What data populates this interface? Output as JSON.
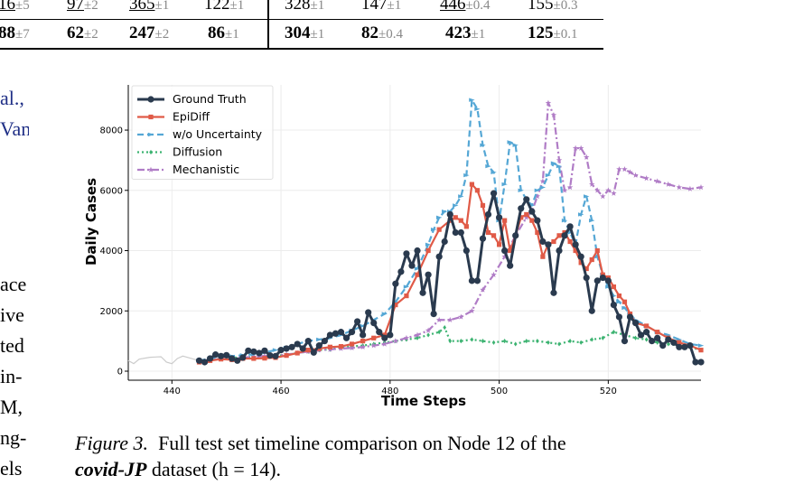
{
  "table": {
    "row1": [
      {
        "v": "16",
        "pm": "±5",
        "underline": true
      },
      {
        "v": "97",
        "pm": "±2",
        "underline": true
      },
      {
        "v": "365",
        "pm": "±1",
        "underline": true
      },
      {
        "v": "122",
        "pm": "±1"
      },
      {
        "v": "328",
        "pm": "±1"
      },
      {
        "v": "147",
        "pm": "±1"
      },
      {
        "v": "446",
        "pm": "±0.4",
        "underline": true
      },
      {
        "v": "155",
        "pm": "±0.3"
      }
    ],
    "row2": [
      {
        "v": "88",
        "pm": "±7"
      },
      {
        "v": "62",
        "pm": "±2"
      },
      {
        "v": "247",
        "pm": "±2"
      },
      {
        "v": "86",
        "pm": "±1"
      },
      {
        "v": "304",
        "pm": "±1"
      },
      {
        "v": "82",
        "pm": "±0.4"
      },
      {
        "v": "423",
        "pm": "±1"
      },
      {
        "v": "125",
        "pm": "±0.1"
      }
    ]
  },
  "side_text": {
    "links": [
      "al.,",
      "Van"
    ],
    "lines": [
      "ace",
      "ive",
      "ted",
      "in-",
      "M,",
      "ng-",
      "els"
    ]
  },
  "caption": {
    "label": "Figure 3.",
    "text": "Full test set timeline comparison on Node 12 of the",
    "dataset": "covid-JP",
    "text2": "dataset (h = 14)."
  },
  "chart_data": {
    "type": "line",
    "xlabel": "Time Steps",
    "ylabel": "Daily Cases",
    "xlim": [
      432,
      537
    ],
    "ylim": [
      -300,
      9500
    ],
    "xticks": [
      440,
      460,
      480,
      500,
      520
    ],
    "yticks": [
      0,
      2000,
      4000,
      6000,
      8000
    ],
    "grid": true,
    "legend_position": "top-left",
    "history": {
      "color": "#cccccc",
      "x": [
        432,
        433,
        434,
        435,
        436,
        437,
        438,
        439,
        440,
        441,
        442,
        443,
        444,
        445
      ],
      "y": [
        350,
        250,
        400,
        430,
        460,
        470,
        480,
        300,
        250,
        420,
        500,
        450,
        400,
        350
      ]
    },
    "series": [
      {
        "name": "Ground Truth",
        "color": "#2a3a4e",
        "style": "solid",
        "marker": "circle",
        "x": [
          445,
          446,
          447,
          448,
          449,
          450,
          451,
          452,
          453,
          454,
          455,
          456,
          457,
          458,
          459,
          460,
          461,
          462,
          463,
          464,
          465,
          466,
          467,
          468,
          469,
          470,
          471,
          472,
          473,
          474,
          475,
          476,
          477,
          478,
          479,
          480,
          481,
          482,
          483,
          484,
          485,
          486,
          487,
          488,
          489,
          490,
          491,
          492,
          493,
          494,
          495,
          496,
          497,
          498,
          499,
          500,
          501,
          502,
          503,
          504,
          505,
          506,
          507,
          508,
          509,
          510,
          511,
          512,
          513,
          514,
          515,
          516,
          517,
          518,
          519,
          520,
          521,
          522,
          523,
          524,
          525,
          526,
          527,
          528,
          529,
          530,
          531,
          532,
          533,
          534,
          535,
          536,
          537
        ],
        "y": [
          350,
          300,
          420,
          550,
          500,
          530,
          420,
          350,
          450,
          680,
          650,
          600,
          680,
          520,
          500,
          700,
          750,
          800,
          900,
          750,
          1000,
          620,
          850,
          1000,
          1200,
          1250,
          1300,
          1100,
          1300,
          1650,
          1200,
          1950,
          1600,
          1300,
          1100,
          1200,
          2900,
          3300,
          3900,
          3500,
          4000,
          2600,
          3200,
          1900,
          3800,
          4300,
          5200,
          4600,
          4600,
          4000,
          3000,
          3000,
          4400,
          5200,
          5900,
          5100,
          4000,
          3500,
          4500,
          5400,
          5700,
          5300,
          5000,
          4300,
          4200,
          2600,
          4000,
          4500,
          4800,
          4200,
          3800,
          3100,
          2000,
          3000,
          3100,
          3000,
          2200,
          1800,
          1000,
          1800,
          1600,
          1200,
          1300,
          1000,
          1100,
          850,
          1050,
          950,
          800,
          800,
          850,
          300,
          300
        ]
      },
      {
        "name": "EpiDiff",
        "color": "#e05a47",
        "style": "solid",
        "marker": "square",
        "x": [
          445,
          447,
          449,
          451,
          453,
          455,
          457,
          459,
          461,
          463,
          465,
          467,
          469,
          471,
          473,
          475,
          477,
          479,
          481,
          483,
          485,
          487,
          489,
          491,
          492,
          493,
          494,
          495,
          496,
          497,
          498,
          499,
          500,
          501,
          502,
          503,
          504,
          505,
          506,
          507,
          508,
          509,
          510,
          511,
          512,
          513,
          514,
          515,
          516,
          517,
          518,
          519,
          520,
          521,
          522,
          523,
          524,
          525,
          527,
          529,
          531,
          533,
          535,
          537
        ],
        "y": [
          300,
          350,
          400,
          380,
          420,
          420,
          430,
          450,
          520,
          600,
          700,
          750,
          800,
          820,
          900,
          1000,
          1100,
          1200,
          2200,
          2500,
          3200,
          4000,
          4700,
          5000,
          5100,
          5000,
          4800,
          6200,
          6000,
          5500,
          4600,
          4500,
          4200,
          5000,
          4000,
          4500,
          5100,
          5200,
          5000,
          4600,
          3800,
          4200,
          4300,
          4500,
          4600,
          4300,
          4000,
          3600,
          3400,
          3700,
          4000,
          3200,
          3100,
          2800,
          2500,
          2300,
          1900,
          1600,
          1500,
          1300,
          1100,
          950,
          850,
          700
        ]
      },
      {
        "name": "w/o Uncertainty",
        "color": "#55a7d5",
        "style": "dashed",
        "marker": "triangle",
        "x": [
          445,
          447,
          449,
          451,
          453,
          455,
          457,
          459,
          461,
          463,
          465,
          467,
          469,
          471,
          473,
          475,
          477,
          479,
          481,
          483,
          485,
          487,
          488,
          489,
          490,
          491,
          492,
          493,
          494,
          495,
          496,
          497,
          498,
          499,
          500,
          501,
          502,
          503,
          504,
          505,
          506,
          507,
          508,
          509,
          510,
          511,
          512,
          513,
          514,
          515,
          516,
          517,
          518,
          519,
          520,
          521,
          522,
          523,
          524,
          525,
          527,
          529,
          531,
          533,
          535,
          537
        ],
        "y": [
          350,
          420,
          480,
          500,
          530,
          560,
          620,
          700,
          780,
          900,
          1000,
          1050,
          1100,
          1200,
          1350,
          1500,
          1700,
          1900,
          2300,
          2800,
          3400,
          4200,
          4700,
          5100,
          5300,
          5300,
          5500,
          5800,
          6500,
          9000,
          8700,
          7500,
          6800,
          6600,
          5000,
          6200,
          7600,
          7500,
          6000,
          5700,
          5500,
          6000,
          6100,
          6500,
          6900,
          6800,
          5000,
          4600,
          4200,
          5200,
          5800,
          5000,
          3800,
          3200,
          2800,
          2500,
          2300,
          2100,
          1900,
          1700,
          1500,
          1300,
          1200,
          1050,
          900,
          850
        ]
      },
      {
        "name": "Diffusion",
        "color": "#3cb371",
        "style": "dotted",
        "marker": "diamond",
        "x": [
          445,
          447,
          449,
          451,
          453,
          455,
          457,
          459,
          461,
          463,
          465,
          467,
          469,
          471,
          473,
          475,
          477,
          479,
          481,
          483,
          485,
          487,
          489,
          490,
          491,
          493,
          495,
          497,
          499,
          501,
          503,
          505,
          507,
          509,
          511,
          513,
          515,
          517,
          519,
          521,
          523,
          525,
          527,
          529,
          531,
          533,
          535,
          537
        ],
        "y": [
          300,
          380,
          400,
          450,
          450,
          480,
          480,
          500,
          550,
          600,
          650,
          700,
          720,
          800,
          820,
          850,
          900,
          950,
          1000,
          1050,
          1100,
          1200,
          1300,
          1450,
          1000,
          1000,
          1050,
          1000,
          950,
          1000,
          900,
          1000,
          1000,
          950,
          900,
          1000,
          950,
          1050,
          1100,
          1300,
          1200,
          1100,
          1050,
          950,
          900,
          850,
          800,
          700
        ]
      },
      {
        "name": "Mechanistic",
        "color": "#b07cc6",
        "style": "dashdot",
        "marker": "star",
        "x": [
          445,
          447,
          449,
          451,
          453,
          455,
          457,
          459,
          461,
          463,
          465,
          467,
          469,
          471,
          473,
          475,
          477,
          479,
          481,
          483,
          485,
          487,
          489,
          491,
          493,
          495,
          497,
          499,
          501,
          503,
          505,
          506,
          507,
          508,
          509,
          510,
          511,
          512,
          513,
          514,
          515,
          516,
          517,
          518,
          519,
          520,
          521,
          522,
          523,
          524,
          525,
          527,
          529,
          531,
          533,
          535,
          537
        ],
        "y": [
          350,
          380,
          400,
          420,
          450,
          480,
          500,
          520,
          550,
          600,
          650,
          700,
          720,
          750,
          770,
          800,
          850,
          900,
          1000,
          1100,
          1200,
          1350,
          1700,
          1700,
          1800,
          2000,
          2700,
          3200,
          3800,
          4500,
          5100,
          5300,
          5800,
          6300,
          8900,
          8500,
          7000,
          6000,
          6100,
          7400,
          7400,
          7100,
          6200,
          6000,
          5800,
          6000,
          5900,
          6700,
          6700,
          6600,
          6500,
          6400,
          6300,
          6200,
          6100,
          6050,
          6100
        ]
      }
    ]
  }
}
